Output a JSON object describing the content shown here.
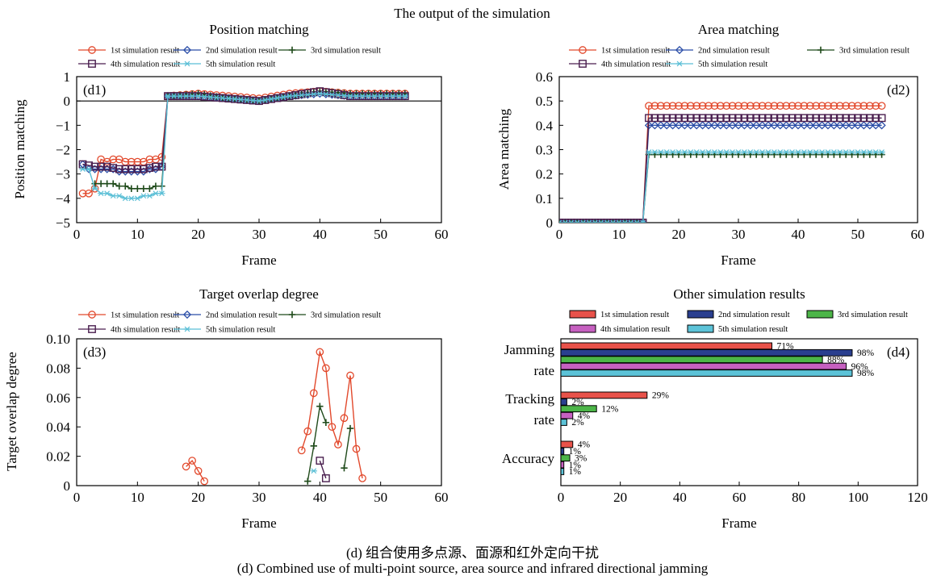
{
  "figure": {
    "suptitle": "The output of the simulation",
    "caption_cn": "(d) 组合使用多点源、面源和红外定向干扰",
    "caption_en": "(d) Combined use of multi-point source, area source and infrared directional jamming"
  },
  "series_style": [
    {
      "name": "1st simulation result",
      "color": "#e2492c",
      "marker": "circle"
    },
    {
      "name": "2nd simulation result",
      "color": "#2b4ea8",
      "marker": "diamond"
    },
    {
      "name": "3rd simulation result",
      "color": "#1f4a1a",
      "marker": "plus"
    },
    {
      "name": "4th simulation result",
      "color": "#4a1f4f",
      "marker": "square"
    },
    {
      "name": "5th simulation result",
      "color": "#5bbfd6",
      "marker": "star"
    }
  ],
  "bar_style": [
    {
      "name": "1st simulation result",
      "fill": "#e8524a"
    },
    {
      "name": "2nd simulation result",
      "fill": "#2a3f8f"
    },
    {
      "name": "3rd simulation result",
      "fill": "#4cb548"
    },
    {
      "name": "4th simulation result",
      "fill": "#c660c0"
    },
    {
      "name": "5th simulation result",
      "fill": "#5cc3d8"
    }
  ],
  "chart_data": [
    {
      "id": "d1",
      "type": "line",
      "title": "Position matching",
      "panel_label": "(d1)",
      "xlabel": "Frame",
      "ylabel": "Position matching",
      "xlim": [
        0,
        60
      ],
      "ylim": [
        -5,
        1
      ],
      "xticks": [
        0,
        10,
        20,
        30,
        40,
        50,
        60
      ],
      "yticks": [
        -5,
        -4,
        -3,
        -2,
        -1,
        0,
        1
      ],
      "ytick_labels": [
        "−5",
        "−4",
        "−3",
        "−2",
        "−1",
        "0",
        "1"
      ],
      "legend_placement": "top",
      "zero_line": true,
      "series": [
        {
          "name": "1st simulation result",
          "x": [
            1,
            2,
            3,
            4,
            5,
            6,
            7,
            8,
            9,
            10,
            11,
            12,
            13,
            14,
            15,
            20,
            25,
            30,
            35,
            40,
            45,
            50,
            54
          ],
          "y": [
            -3.8,
            -3.8,
            -3.6,
            -2.4,
            -2.5,
            -2.4,
            -2.4,
            -2.5,
            -2.5,
            -2.5,
            -2.5,
            -2.4,
            -2.4,
            -2.3,
            0.2,
            0.3,
            0.2,
            0.1,
            0.3,
            0.4,
            0.3,
            0.3,
            0.3
          ]
        },
        {
          "name": "2nd simulation result",
          "x": [
            1,
            2,
            3,
            4,
            5,
            6,
            7,
            8,
            9,
            10,
            11,
            12,
            13,
            14,
            15,
            20,
            25,
            30,
            35,
            40,
            45,
            50,
            54
          ],
          "y": [
            -2.6,
            -2.8,
            -2.8,
            -2.8,
            -2.8,
            -2.8,
            -2.9,
            -2.9,
            -2.9,
            -2.9,
            -2.9,
            -2.8,
            -2.8,
            -2.7,
            0.2,
            0.2,
            0.1,
            0.0,
            0.2,
            0.3,
            0.2,
            0.2,
            0.2
          ]
        },
        {
          "name": "3rd simulation result",
          "x": [
            3,
            4,
            5,
            6,
            7,
            8,
            9,
            10,
            11,
            12,
            13,
            14,
            15,
            20,
            25,
            30,
            35,
            40,
            45,
            50,
            54
          ],
          "y": [
            -3.4,
            -3.4,
            -3.4,
            -3.4,
            -3.5,
            -3.5,
            -3.6,
            -3.6,
            -3.6,
            -3.6,
            -3.5,
            -3.5,
            0.2,
            0.3,
            0.1,
            0.0,
            0.2,
            0.4,
            0.3,
            0.3,
            0.3
          ]
        },
        {
          "name": "4th simulation result",
          "x": [
            1,
            3,
            5,
            7,
            9,
            11,
            13,
            14,
            15,
            20,
            25,
            30,
            35,
            40,
            45,
            50,
            54
          ],
          "y": [
            -2.6,
            -2.7,
            -2.7,
            -2.8,
            -2.8,
            -2.8,
            -2.7,
            -2.7,
            0.2,
            0.2,
            0.1,
            0.0,
            0.2,
            0.4,
            0.2,
            0.2,
            0.2
          ]
        },
        {
          "name": "5th simulation result",
          "x": [
            1,
            2,
            3,
            4,
            5,
            6,
            7,
            8,
            9,
            10,
            11,
            12,
            13,
            14,
            15,
            20,
            25,
            30,
            35,
            40,
            45,
            50,
            54
          ],
          "y": [
            -2.8,
            -2.8,
            -3.6,
            -3.8,
            -3.8,
            -3.9,
            -3.9,
            -4.0,
            -4.0,
            -4.0,
            -3.9,
            -3.9,
            -3.8,
            -3.8,
            0.2,
            0.2,
            0.1,
            0.0,
            0.2,
            0.3,
            0.2,
            0.2,
            0.2
          ]
        }
      ]
    },
    {
      "id": "d2",
      "type": "line",
      "title": "Area matching",
      "panel_label": "(d2)",
      "xlabel": "Frame",
      "ylabel": "Area matching",
      "xlim": [
        0,
        60
      ],
      "ylim": [
        0,
        0.6
      ],
      "xticks": [
        0,
        10,
        20,
        30,
        40,
        50,
        60
      ],
      "yticks": [
        0,
        0.1,
        0.2,
        0.3,
        0.4,
        0.5,
        0.6
      ],
      "ytick_labels": [
        "0",
        "0.1",
        "0.2",
        "0.3",
        "0.4",
        "0.5",
        "0.6"
      ],
      "legend_placement": "top",
      "series": [
        {
          "name": "1st simulation result",
          "x": [
            0,
            14,
            15,
            54
          ],
          "y": [
            0,
            0,
            0.48,
            0.48
          ]
        },
        {
          "name": "2nd simulation result",
          "x": [
            0,
            14,
            15,
            54
          ],
          "y": [
            0,
            0,
            0.4,
            0.4
          ]
        },
        {
          "name": "3rd simulation result",
          "x": [
            0,
            14,
            15,
            54
          ],
          "y": [
            0,
            0,
            0.28,
            0.28
          ]
        },
        {
          "name": "4th simulation result",
          "x": [
            0,
            14,
            15,
            54
          ],
          "y": [
            0,
            0,
            0.43,
            0.43
          ]
        },
        {
          "name": "5th simulation result",
          "x": [
            0,
            14,
            15,
            54
          ],
          "y": [
            0,
            0,
            0.29,
            0.29
          ]
        }
      ]
    },
    {
      "id": "d3",
      "type": "line",
      "title": "Target overlap degree",
      "panel_label": "(d3)",
      "xlabel": "Frame",
      "ylabel": "Target overlap degree",
      "xlim": [
        0,
        60
      ],
      "ylim": [
        0,
        0.1
      ],
      "xticks": [
        0,
        10,
        20,
        30,
        40,
        50,
        60
      ],
      "yticks": [
        0,
        0.02,
        0.04,
        0.06,
        0.08,
        0.1
      ],
      "ytick_labels": [
        "0",
        "0.02",
        "0.04",
        "0.06",
        "0.08",
        "0.10"
      ],
      "legend_placement": "top",
      "series": [
        {
          "name": "1st simulation result",
          "segments": [
            {
              "x": [
                18,
                19,
                20,
                21
              ],
              "y": [
                0.013,
                0.017,
                0.01,
                0.003
              ]
            },
            {
              "x": [
                37,
                38,
                39,
                40,
                41,
                42,
                43,
                44,
                45,
                46,
                47
              ],
              "y": [
                0.024,
                0.037,
                0.063,
                0.091,
                0.08,
                0.04,
                0.028,
                0.046,
                0.075,
                0.025,
                0.005
              ]
            }
          ]
        },
        {
          "name": "2nd simulation result",
          "segments": []
        },
        {
          "name": "3rd simulation result",
          "segments": [
            {
              "x": [
                38,
                39,
                40,
                41
              ],
              "y": [
                0.003,
                0.027,
                0.054,
                0.043
              ]
            },
            {
              "x": [
                44,
                45
              ],
              "y": [
                0.012,
                0.039
              ]
            }
          ]
        },
        {
          "name": "4th simulation result",
          "segments": [
            {
              "x": [
                40,
                41
              ],
              "y": [
                0.017,
                0.005
              ]
            }
          ]
        },
        {
          "name": "5th simulation result",
          "segments": [
            {
              "x": [
                39
              ],
              "y": [
                0.01
              ]
            }
          ]
        }
      ]
    },
    {
      "id": "d4",
      "type": "bar",
      "orientation": "horizontal",
      "title": "Other simulation results",
      "panel_label": "(d4)",
      "xlabel": "Frame",
      "xlim": [
        0,
        120
      ],
      "xticks": [
        0,
        20,
        40,
        60,
        80,
        100,
        120
      ],
      "legend_placement": "top",
      "categories": [
        "Jamming rate",
        "Tracking rate",
        "Accuracy"
      ],
      "category_lines": [
        [
          "Jamming",
          "rate"
        ],
        [
          "Tracking",
          "rate"
        ],
        [
          "Accuracy"
        ]
      ],
      "series": [
        {
          "name": "1st simulation result",
          "values": [
            71,
            29,
            4
          ],
          "labels": [
            "71%",
            "29%",
            "4%"
          ]
        },
        {
          "name": "2nd simulation result",
          "values": [
            98,
            2,
            1
          ],
          "labels": [
            "98%",
            "2%",
            "1%"
          ]
        },
        {
          "name": "3rd simulation result",
          "values": [
            88,
            12,
            3
          ],
          "labels": [
            "88%",
            "12%",
            "3%"
          ]
        },
        {
          "name": "4th simulation result",
          "values": [
            96,
            4,
            1
          ],
          "labels": [
            "96%",
            "4%",
            "1%"
          ]
        },
        {
          "name": "5th simulation result",
          "values": [
            98,
            2,
            1
          ],
          "labels": [
            "98%",
            "2%",
            "1%"
          ]
        }
      ]
    }
  ]
}
